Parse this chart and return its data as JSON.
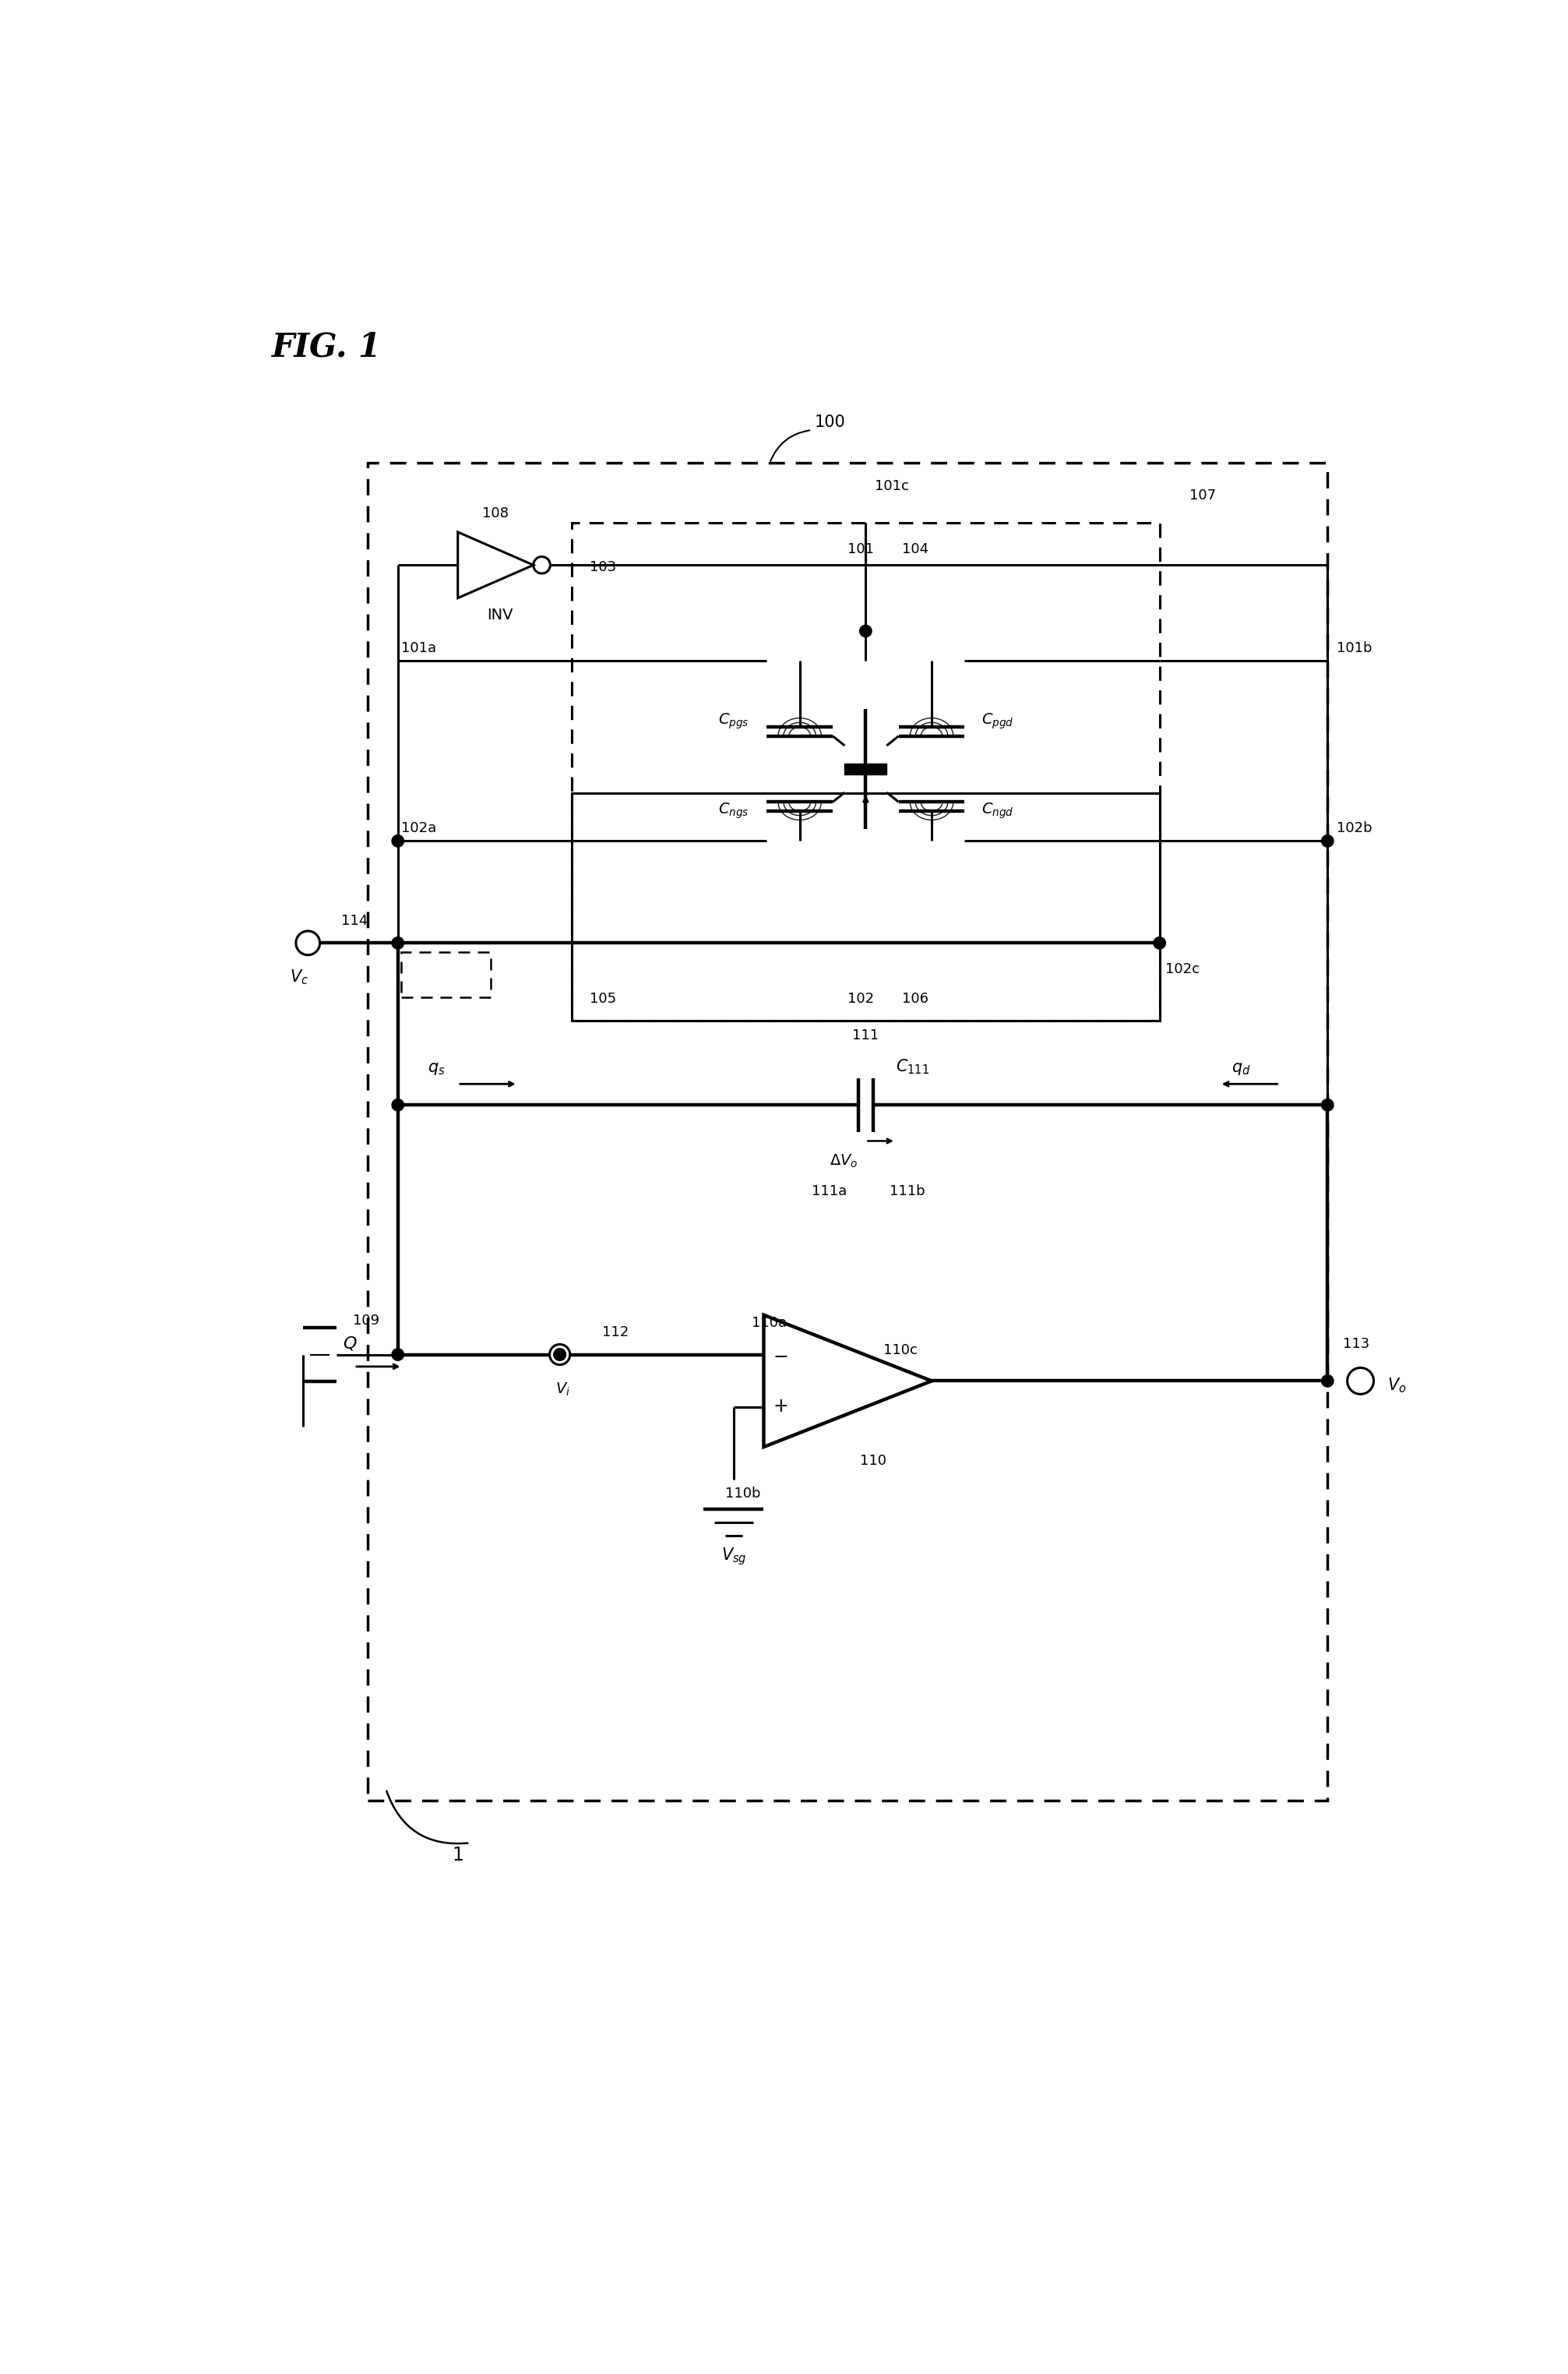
{
  "fig_width": 20.13,
  "fig_height": 30.47,
  "bg_color": "#ffffff",
  "title": "FIG. 1",
  "labels": {
    "ref1": "1",
    "ref100": "100",
    "ref101": "101",
    "ref101a": "101a",
    "ref101b": "101b",
    "ref101c": "101c",
    "ref102": "102",
    "ref102a": "102a",
    "ref102b": "102b",
    "ref102c": "102c",
    "ref103": "103",
    "ref104": "104",
    "ref105": "105",
    "ref106": "106",
    "ref107": "107",
    "ref108": "108",
    "ref109": "109",
    "ref110": "110",
    "ref110a": "110a",
    "ref110b": "110b",
    "ref110c": "110c",
    "ref111": "111",
    "ref111a": "111a",
    "ref111b": "111b",
    "ref112": "112",
    "ref113": "113",
    "ref114": "114",
    "INV": "INV",
    "Vc": "$V_c$",
    "Vi": "$V_i$",
    "Q": "$Q$",
    "qs": "$q_s$",
    "qd": "$q_d$",
    "DeltaVo": "$\\Delta V_o$",
    "Vo": "$V_o$",
    "Vsg": "$V_{sg}$",
    "Cpgs": "$C_{pgs}$",
    "Cpgd": "$C_{pgd}$",
    "Cngs": "$C_{ngs}$",
    "Cngd": "$C_{ngd}$",
    "C111": "$C_{111}$"
  }
}
